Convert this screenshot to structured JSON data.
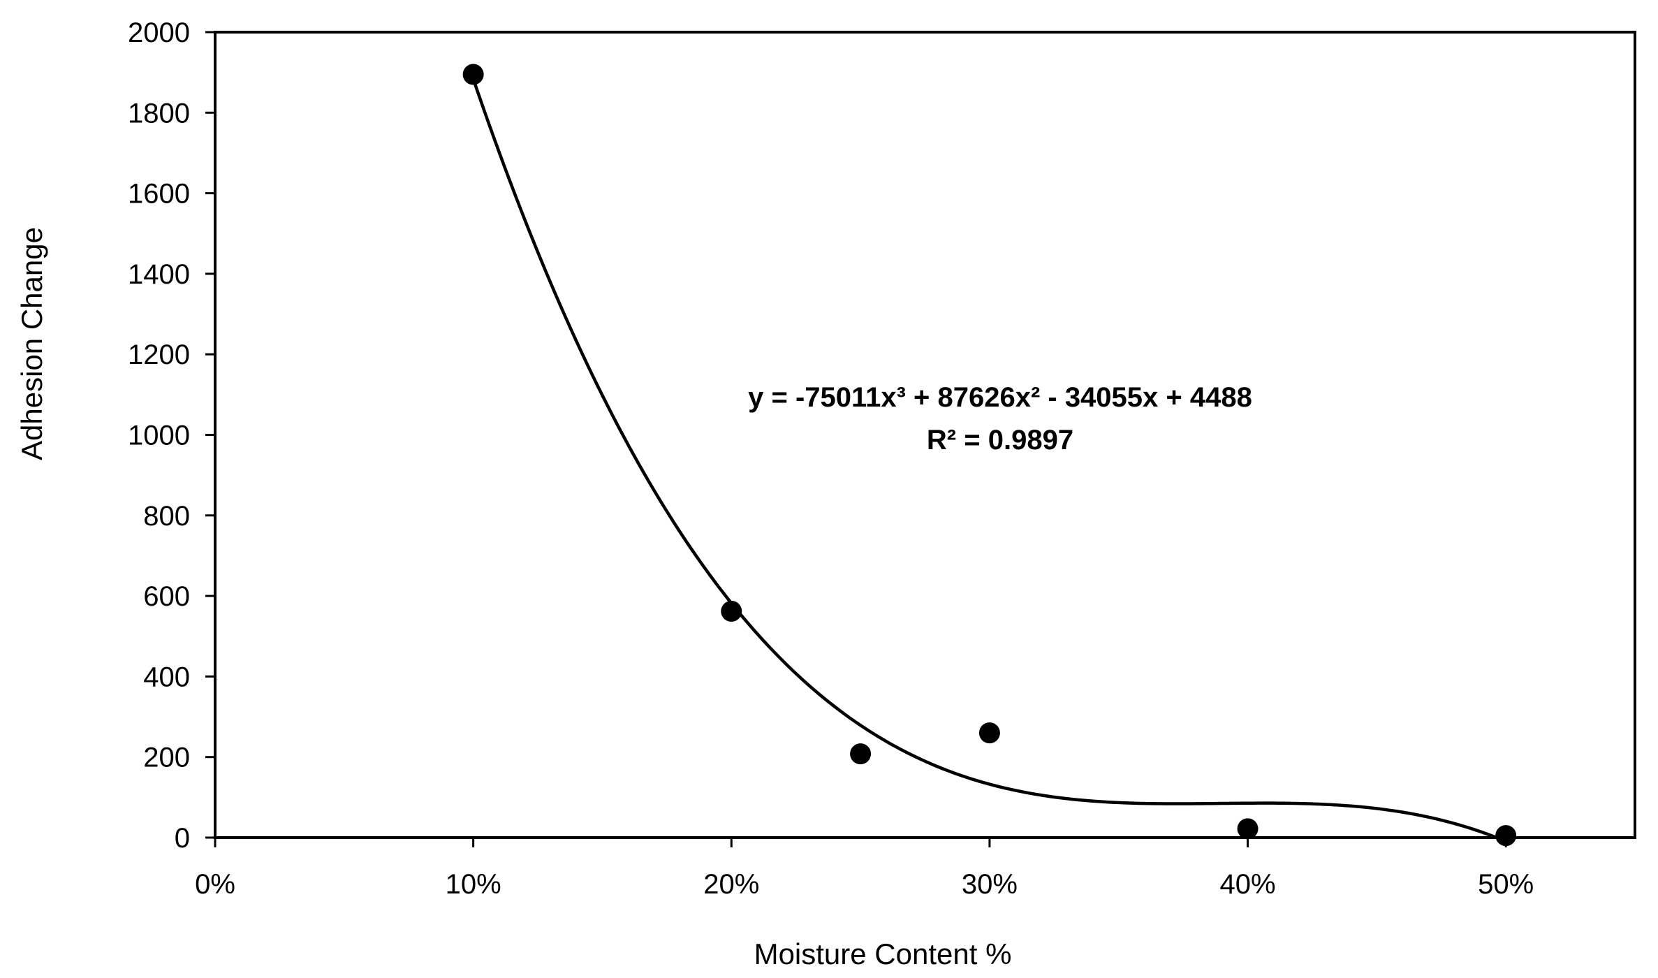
{
  "chart_data": {
    "type": "scatter",
    "xlabel": "Moisture Content %",
    "ylabel": "Adhesion Change",
    "xlim": [
      0,
      0.55
    ],
    "ylim": [
      0,
      2000
    ],
    "x_ticks": [
      0,
      0.1,
      0.2,
      0.3,
      0.4,
      0.5
    ],
    "x_tick_labels": [
      "0%",
      "10%",
      "20%",
      "30%",
      "40%",
      "50%"
    ],
    "y_ticks": [
      0,
      200,
      400,
      600,
      800,
      1000,
      1200,
      1400,
      1600,
      1800,
      2000
    ],
    "y_tick_labels": [
      "0",
      "200",
      "400",
      "600",
      "800",
      "1000",
      "1200",
      "1400",
      "1600",
      "1800",
      "2000"
    ],
    "points": [
      {
        "x": 0.1,
        "y": 1895
      },
      {
        "x": 0.2,
        "y": 562
      },
      {
        "x": 0.25,
        "y": 208
      },
      {
        "x": 0.3,
        "y": 260
      },
      {
        "x": 0.4,
        "y": 22
      },
      {
        "x": 0.5,
        "y": 5
      }
    ],
    "trendline": {
      "type": "polynomial",
      "order": 3,
      "coefficients": [
        -75011,
        87626,
        -34055,
        4488
      ],
      "x_range": [
        0.1,
        0.5
      ]
    },
    "annotations": {
      "equation": "y = -75011x³ + 87626x² - 34055x + 4488",
      "r_squared": "R² = 0.9897"
    },
    "grid": false,
    "legend": "none"
  }
}
